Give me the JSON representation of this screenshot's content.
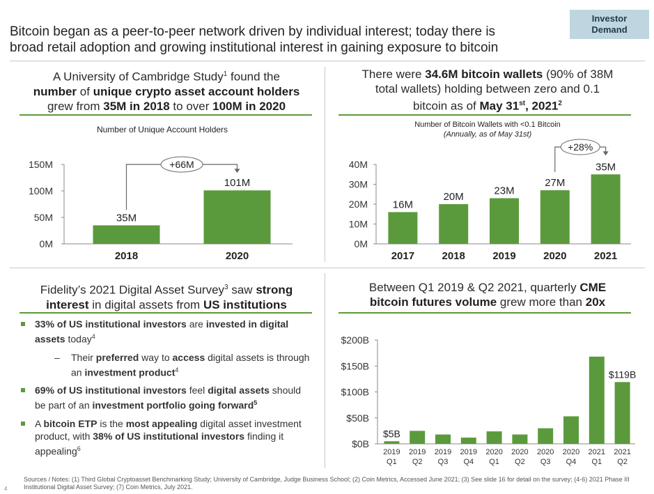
{
  "title_line1": "Bitcoin began as a peer-to-peer network driven by individual interest; today there is",
  "title_line2": "broad retail adoption and growing institutional interest in gaining exposure to bitcoin",
  "tag_line1": "Investor",
  "tag_line2": "Demand",
  "panel1": {
    "h1_a": "A University of Cambridge Study",
    "h1_sup": "1",
    "h1_b": " found the",
    "h2_b1": "number",
    "h2_m": " of ",
    "h2_b2": "unique crypto asset account holders",
    "h3_a": "grew from ",
    "h3_b1": "35M in 2018",
    "h3_m": " to over ",
    "h3_b2": "100M in 2020"
  },
  "panel2": {
    "h1_a": "There were ",
    "h1_b": "34.6M bitcoin wallets",
    "h1_c": " (90% of 38M",
    "h2": "total wallets) holding between zero and 0.1",
    "h3_a": "bitcoin as of ",
    "h3_b": "May 31",
    "h3_sup": "st",
    "h3_c": ", 2021",
    "h3_sup2": "2"
  },
  "panel3": {
    "h1_a": "Fidelity’s 2021 Digital Asset Survey",
    "h1_sup": "3",
    "h1_b": " saw ",
    "h1_c": "strong",
    "h2_a": "interest",
    "h2_b": " in digital assets from ",
    "h2_c": "US institutions",
    "b1_bold1": "33% of US institutional investors",
    "b1_t1": " are ",
    "b1_bold2": "invested in digital assets",
    "b1_t2": " today",
    "b1_sup": "4",
    "sub_dash": "–",
    "sub_t1": "Their ",
    "sub_bold1": "preferred",
    "sub_t2": " way to ",
    "sub_bold2": "access",
    "sub_t3": " digital assets is through an ",
    "sub_bold3": "investment product",
    "sub_sup": "4",
    "b2_bold1": "69% of US institutional investors",
    "b2_t1": " feel ",
    "b2_bold2": "digital assets",
    "b2_t2": " should be part of an ",
    "b2_bold3": "investment portfolio going forward",
    "b2_sup": "5",
    "b3_t1": "A ",
    "b3_bold1": "bitcoin ETP",
    "b3_t2": " is the ",
    "b3_bold2": "most appealing",
    "b3_t3": " digital asset investment product, with ",
    "b3_bold3": "38% of US institutional investors",
    "b3_t4": " finding it appealing",
    "b3_sup": "6"
  },
  "panel4": {
    "h1_a": "Between Q1 2019 & Q2 2021, quarterly ",
    "h1_b": "CME",
    "h2_a": "bitcoin futures volume",
    "h2_b": " grew more than ",
    "h2_c": "20x"
  },
  "footnote": "Sources / Notes: (1) Third Global Cryptoasset Benchmarking Study; University of Cambridge, Judge Business School; (2) Coin Metrics, Accessed June 2021; (3) See slide 16 for detail on the survey; (4-6) 2021 Phase III Institutional Digital Asset Survey; (7) Coin Metrics, July 2021.",
  "page_number": "4",
  "colors": {
    "bar": "#5b9a3c",
    "rule": "#5b9a3c",
    "tag_bg": "#bfd6e0"
  },
  "chart_data": [
    {
      "type": "bar",
      "title": "Number of Unique Account Holders",
      "categories": [
        "2018",
        "2020"
      ],
      "values": [
        35,
        101
      ],
      "value_labels": [
        "35M",
        "101M"
      ],
      "yticks": [
        0,
        50,
        100,
        150
      ],
      "ytick_labels": [
        "0M",
        "50M",
        "100M",
        "150M"
      ],
      "ylim": [
        0,
        150
      ],
      "annotation": "+66M"
    },
    {
      "type": "bar",
      "title": "Number of Bitcoin Wallets with <0.1 Bitcoin",
      "subtitle": "(Annually, as of May 31st)",
      "categories": [
        "2017",
        "2018",
        "2019",
        "2020",
        "2021"
      ],
      "values": [
        16,
        20,
        23,
        27,
        35
      ],
      "value_labels": [
        "16M",
        "20M",
        "23M",
        "27M",
        "35M"
      ],
      "yticks": [
        0,
        10,
        20,
        30,
        40
      ],
      "ytick_labels": [
        "0M",
        "10M",
        "20M",
        "30M",
        "40M"
      ],
      "ylim": [
        0,
        40
      ],
      "annotation": "+28%"
    },
    {
      "type": "bar",
      "categories": [
        "2019 Q1",
        "2019 Q2",
        "2019 Q3",
        "2019 Q4",
        "2020 Q1",
        "2020 Q2",
        "2020 Q3",
        "2020 Q4",
        "2021 Q1",
        "2021 Q2"
      ],
      "category_top": [
        "2019",
        "2019",
        "2019",
        "2019",
        "2020",
        "2020",
        "2020",
        "2020",
        "2021",
        "2021"
      ],
      "category_bottom": [
        "Q1",
        "Q2",
        "Q3",
        "Q4",
        "Q1",
        "Q2",
        "Q3",
        "Q4",
        "Q1",
        "Q2"
      ],
      "values": [
        5,
        25,
        18,
        12,
        24,
        18,
        30,
        53,
        168,
        119
      ],
      "value_labels": [
        "$5B",
        "",
        "",
        "",
        "",
        "",
        "",
        "",
        "",
        "$119B"
      ],
      "yticks": [
        0,
        50,
        100,
        150,
        200
      ],
      "ytick_labels": [
        "$0B",
        "$50B",
        "$100B",
        "$150B",
        "$200B"
      ],
      "ylim": [
        0,
        200
      ]
    }
  ]
}
